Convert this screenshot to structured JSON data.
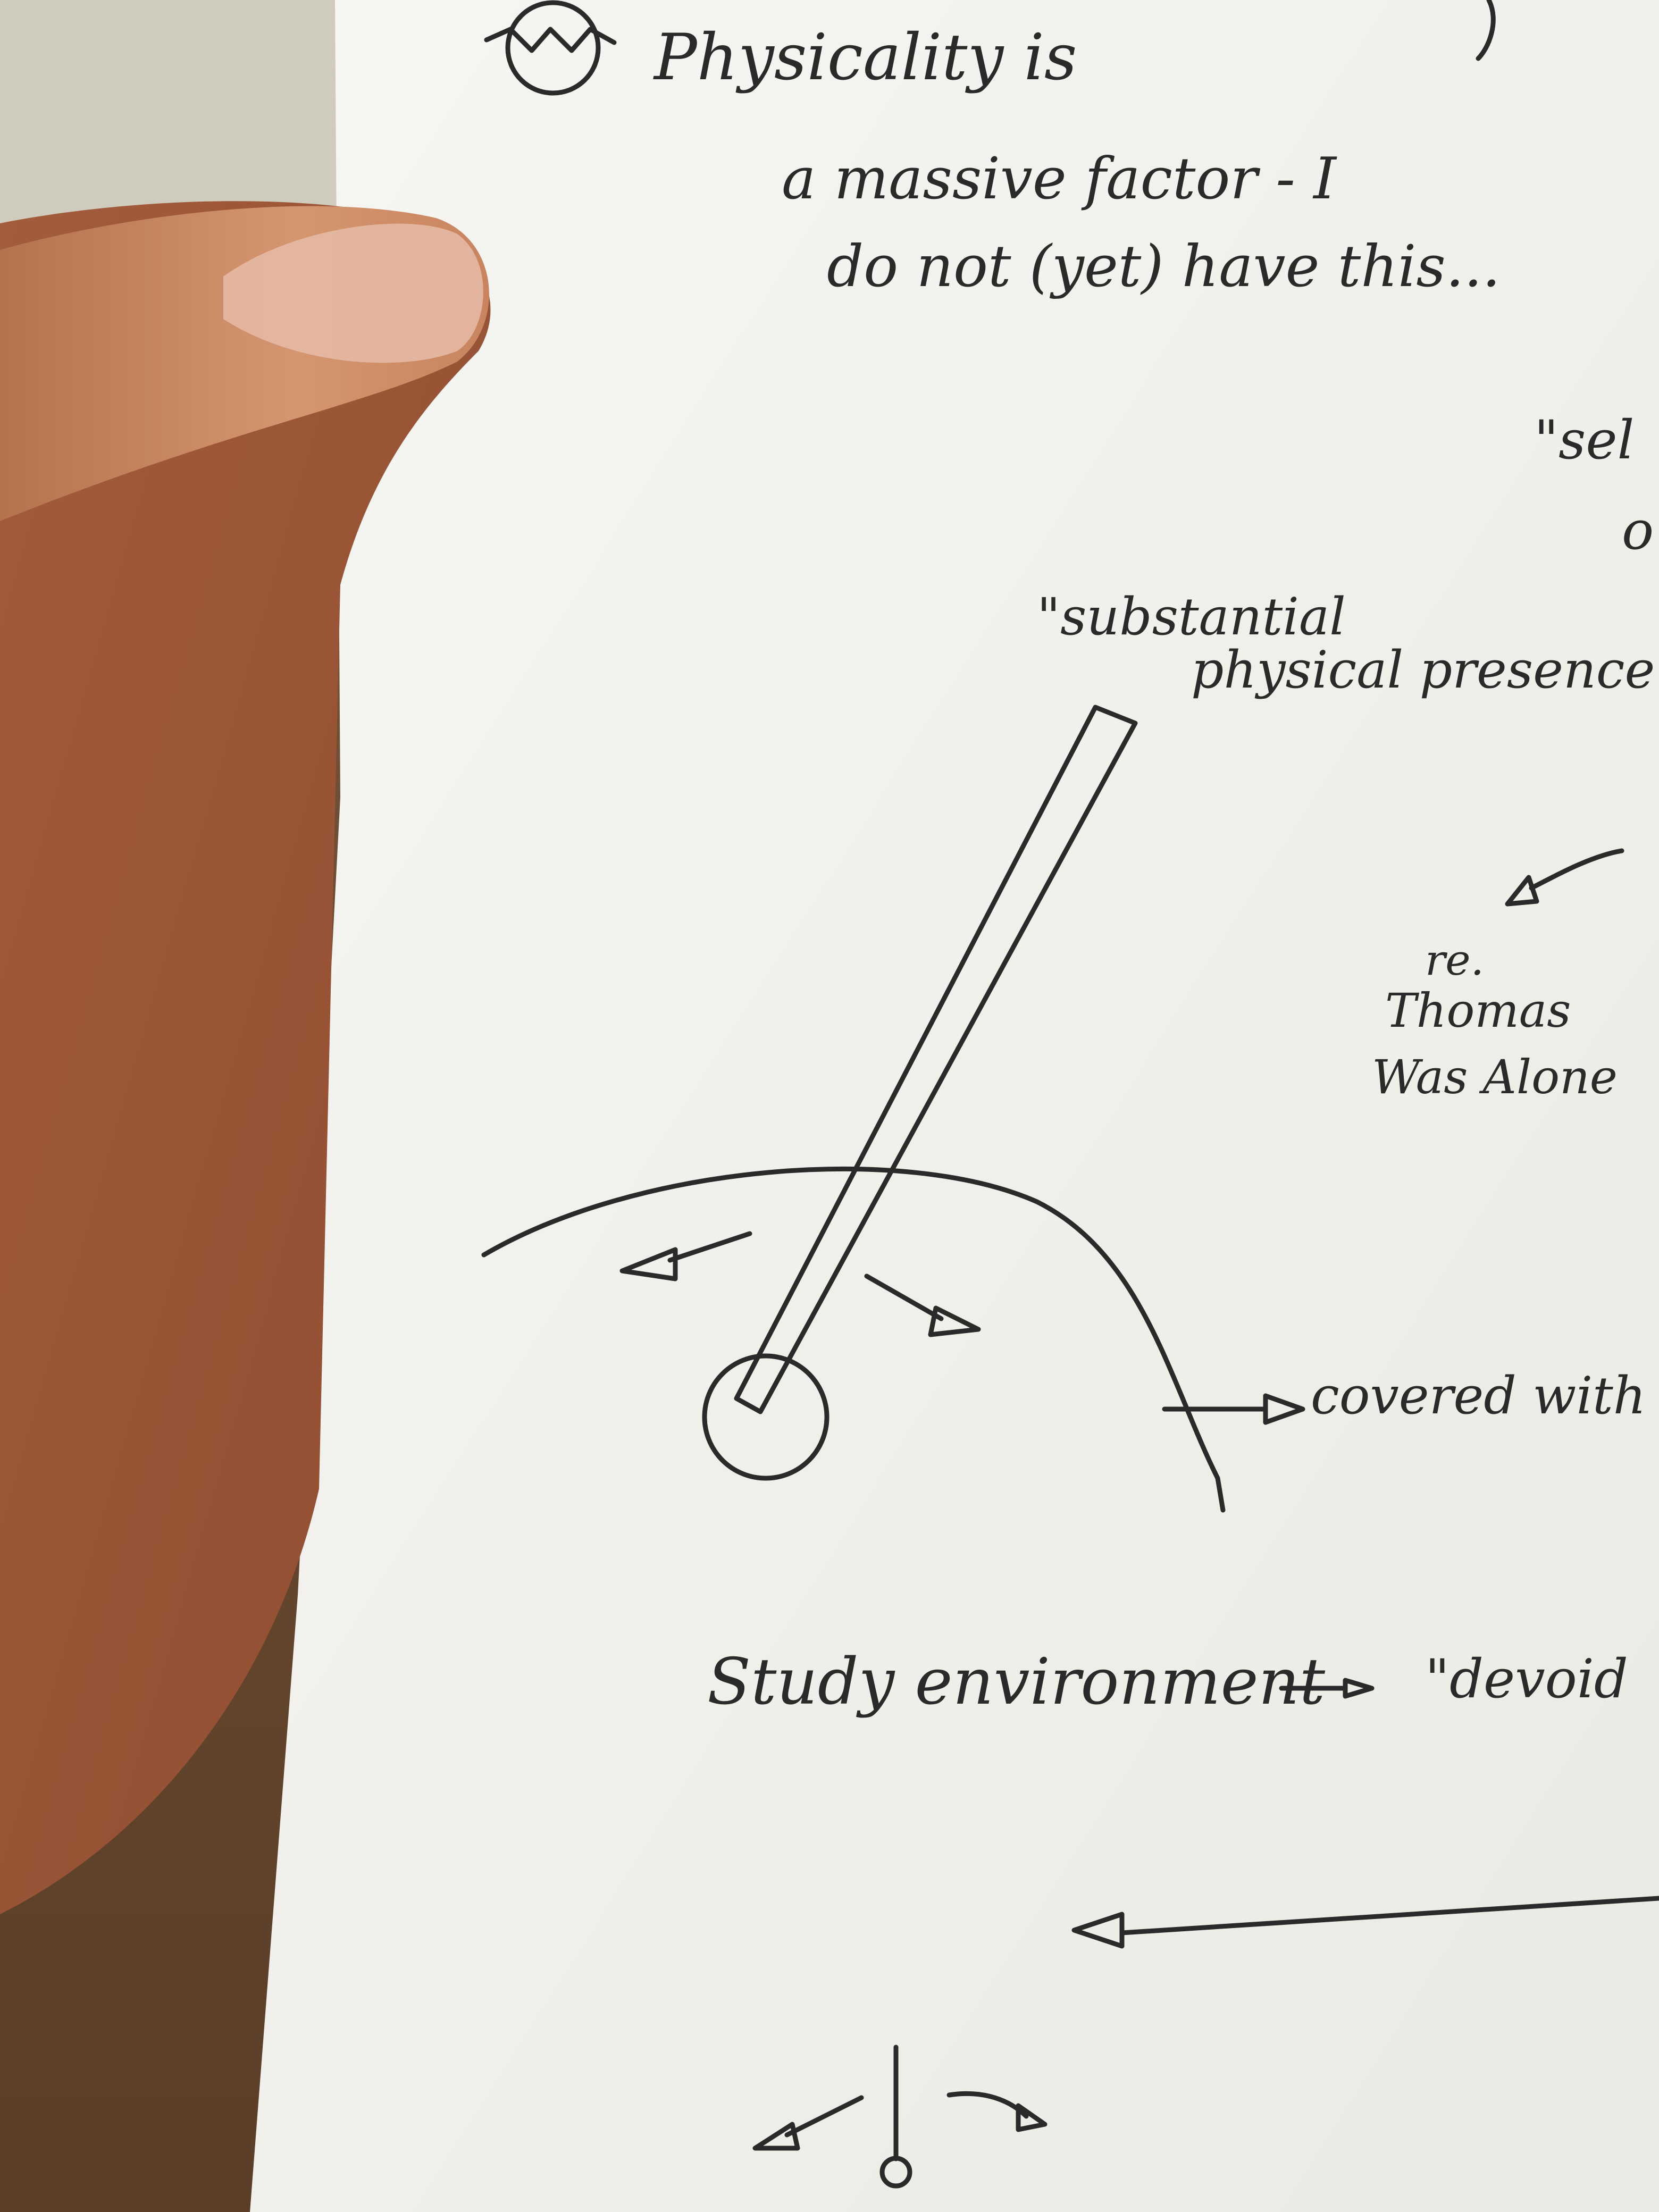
{
  "notes": {
    "physicality": "Physicality is",
    "massive": "a massive factor - I",
    "not_yet": "do not (yet) have this...",
    "sel": "\"sel",
    "of": "o",
    "substantial": "\"substantial",
    "physical_presence": "physical presence\"",
    "re": "re.",
    "thomas": "Thomas",
    "was_alone": "Was Alone",
    "covered": "covered with \"",
    "study": "Study environment",
    "devoid": "\"devoid"
  },
  "colors": {
    "ink": "#2a2a2a",
    "paper": "#f4f3ef",
    "skin": "#d9a07c",
    "table": "#6b4a33"
  }
}
